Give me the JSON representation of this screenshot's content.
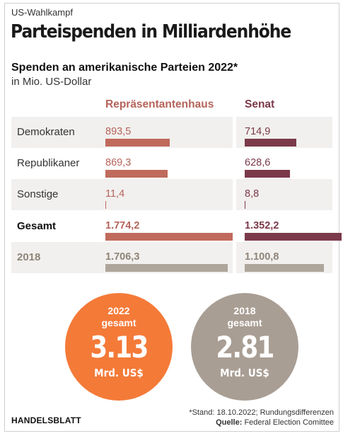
{
  "header": {
    "kicker": "US-Wahlkampf",
    "title": "Parteispenden in Milliardenhöhe",
    "subtitle": "Spenden an amerikanische Parteien 2022*",
    "unit": "in Mio. US-Dollar"
  },
  "colors": {
    "house": "#c06a5c",
    "house_text": "#b5635a",
    "senate": "#7b3a4a",
    "gray": "#aea59b",
    "gray_text": "#8f8478",
    "orange": "#f47a38",
    "circle_gray": "#a99e94"
  },
  "chart_data": {
    "type": "bar",
    "columns": [
      "Repräsentantenhaus",
      "Senat"
    ],
    "categories": [
      "Demokraten",
      "Republikaner",
      "Sonstige",
      "Gesamt",
      "2018"
    ],
    "series": [
      {
        "name": "Repräsentantenhaus",
        "values": [
          893.5,
          869.3,
          11.4,
          1774.2,
          1706.3
        ],
        "labels": [
          "893,5",
          "869,3",
          "11,4",
          "1.774,2",
          "1.706,3"
        ]
      },
      {
        "name": "Senat",
        "values": [
          714.9,
          628.6,
          8.8,
          1352.2,
          1100.8
        ],
        "labels": [
          "714,9",
          "628,6",
          "8,8",
          "1.352,2",
          "1.100,8"
        ]
      }
    ],
    "xlim": [
      0,
      1774.2
    ]
  },
  "circles": [
    {
      "year": "2022",
      "total_label": "gesamt",
      "value": "3.13",
      "unit": "Mrd. US$"
    },
    {
      "year": "2018",
      "total_label": "gesamt",
      "value": "2.81",
      "unit": "Mrd. US$"
    }
  ],
  "footer": {
    "brand": "HANDELSBLATT",
    "note": "*Stand: 18.10.2022; Rundungsdifferenzen",
    "source_label": "Quelle:",
    "source": "Federal Election Comittee"
  }
}
